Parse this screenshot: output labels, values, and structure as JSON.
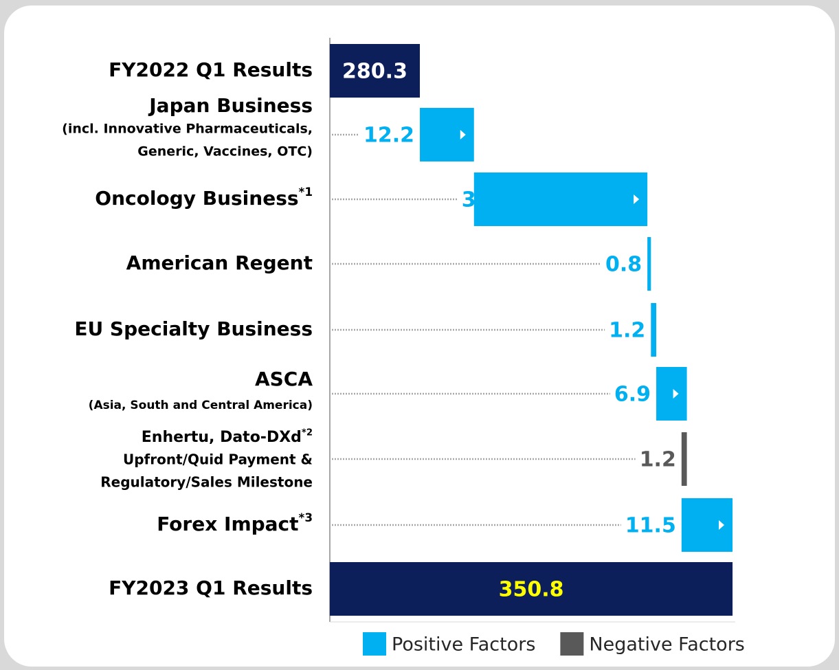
{
  "chart_data": {
    "type": "waterfall",
    "orientation": "horizontal",
    "categories": [
      "FY2022 Q1 Results",
      "Japan Business",
      "Oncology Business",
      "American Regent",
      "EU Specialty Business",
      "ASCA",
      "Enhertu, Dato-DXd",
      "Forex Impact",
      "FY2023 Q1 Results"
    ],
    "category_notes": [
      null,
      null,
      "*1",
      null,
      null,
      null,
      "*2",
      "*3",
      null
    ],
    "category_sublabels": [
      [],
      [
        "(incl. Innovative Pharmaceuticals,",
        "Generic, Vaccines, OTC)"
      ],
      [],
      [],
      [],
      [
        "(Asia, South and Central America)"
      ],
      [
        "Upfront/Quid Payment &",
        "Regulatory/Sales Milestone"
      ],
      [],
      []
    ],
    "values": [
      280.3,
      12.2,
      39.1,
      0.8,
      1.2,
      6.9,
      -1.2,
      11.5,
      350.8
    ],
    "value_labels": [
      "280.3",
      "12.2",
      "39.1",
      "0.8",
      "1.2",
      "6.9",
      "1.2",
      "11.5",
      "350.8"
    ],
    "kinds": [
      "total",
      "positive",
      "positive",
      "positive",
      "positive",
      "positive",
      "negative",
      "positive",
      "total"
    ],
    "colors": {
      "total": "#0c1f5b",
      "positive": "#00b0f0",
      "negative": "#595959"
    },
    "xlim": [
      260,
      370
    ],
    "legend": [
      {
        "name": "Positive Factors",
        "color": "#00b0f0"
      },
      {
        "name": "Negative Factors",
        "color": "#595959"
      }
    ]
  }
}
